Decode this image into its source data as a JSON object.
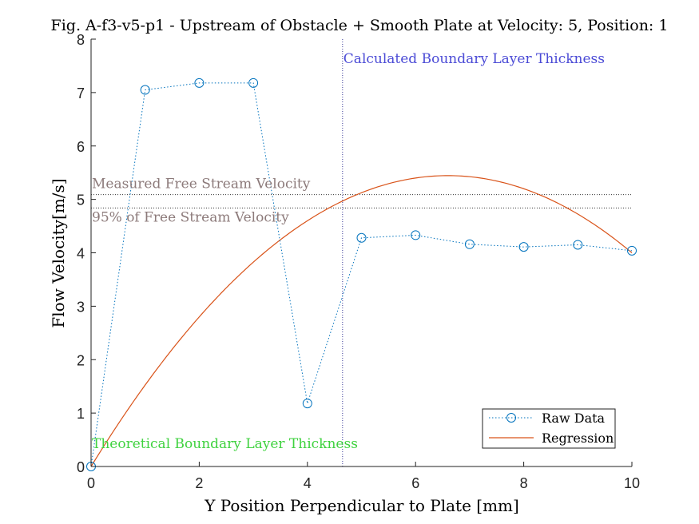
{
  "chart_data": {
    "type": "line",
    "title": "Fig. A-f3-v5-p1 - Upstream of Obstacle + Smooth Plate at Velocity: 5, Position: 1",
    "xlabel": "Y Position Perpendicular to Plate [mm]",
    "ylabel": "Flow Velocity[m/s]",
    "xlim": [
      0,
      10
    ],
    "ylim": [
      0,
      8
    ],
    "xticks": [
      0,
      2,
      4,
      6,
      8,
      10
    ],
    "yticks": [
      0,
      1,
      2,
      3,
      4,
      5,
      6,
      7,
      8
    ],
    "grid": false,
    "legend_position": "bottom-right",
    "series": [
      {
        "name": "Raw Data",
        "style": "dotted-with-circle-markers",
        "color": "#0072BD",
        "x": [
          0,
          1,
          2,
          3,
          4,
          5,
          6,
          7,
          8,
          9,
          10
        ],
        "y": [
          0,
          7.05,
          7.18,
          7.18,
          1.18,
          4.28,
          4.33,
          4.16,
          4.11,
          4.15,
          4.04
        ]
      },
      {
        "name": "Regression",
        "style": "solid",
        "color": "#D95319",
        "quadratic_coefficients": {
          "a": -0.125,
          "b": 1.65,
          "c": 0
        }
      }
    ],
    "reference_lines": [
      {
        "orientation": "horizontal",
        "value": 5.09,
        "label": "Measured Free Stream Velocity",
        "color": "#8c7a7a"
      },
      {
        "orientation": "horizontal",
        "value": 4.84,
        "label": "95% of Free Stream Velocity",
        "color": "#8c7a7a"
      },
      {
        "orientation": "vertical",
        "value": 4.65,
        "label": "Calculated Boundary Layer Thickness",
        "color": "#4b4bd6"
      },
      {
        "orientation": "vertical",
        "value": 0,
        "label": "Theoretical Boundary Layer Thickness",
        "color": "#3fd23f"
      }
    ]
  }
}
